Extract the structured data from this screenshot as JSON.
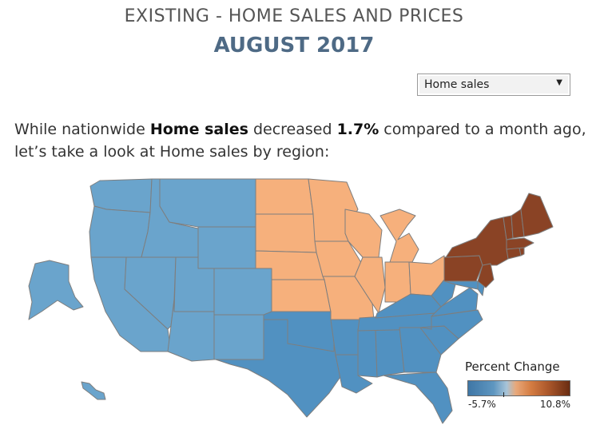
{
  "header": {
    "title": "EXISTING -  HOME SALES AND PRICES",
    "subtitle": "AUGUST 2017"
  },
  "filter": {
    "selected": "Home sales",
    "arrow_icon": "caret-down-icon"
  },
  "summary": {
    "part1": "While nationwide ",
    "metric": "Home sales",
    "part2": " decreased ",
    "change": "1.7%",
    "part3": " compared to a month ago,",
    "line2": "let’s take a look at Home sales by region:"
  },
  "legend": {
    "title": "Percent Change",
    "min_label": "-5.7%",
    "max_label": "10.8%",
    "colors": [
      "#3f77a6",
      "#5e96c0",
      "#a7c4d8",
      "#e8a87a",
      "#d47c42",
      "#a8552a",
      "#6a2d12"
    ]
  },
  "map_data": {
    "regions": [
      {
        "id": "west",
        "color": "#6aa4cc",
        "states": [
          "WA",
          "OR",
          "CA",
          "NV",
          "ID",
          "MT",
          "WY",
          "UT",
          "CO",
          "AZ",
          "NM",
          "AK",
          "HI"
        ]
      },
      {
        "id": "midwest",
        "color": "#f6b07c",
        "states": [
          "ND",
          "SD",
          "NE",
          "KS",
          "MN",
          "IA",
          "MO",
          "WI",
          "IL",
          "MI",
          "IN",
          "OH"
        ]
      },
      {
        "id": "south",
        "color": "#5191c1",
        "states": [
          "TX",
          "OK",
          "AR",
          "LA",
          "MS",
          "AL",
          "TN",
          "KY",
          "GA",
          "FL",
          "SC",
          "NC",
          "VA",
          "WV",
          "MD",
          "DE"
        ]
      },
      {
        "id": "northeast",
        "color": "#8a4325",
        "states": [
          "PA",
          "NY",
          "NJ",
          "CT",
          "RI",
          "MA",
          "VT",
          "NH",
          "ME"
        ]
      }
    ]
  }
}
